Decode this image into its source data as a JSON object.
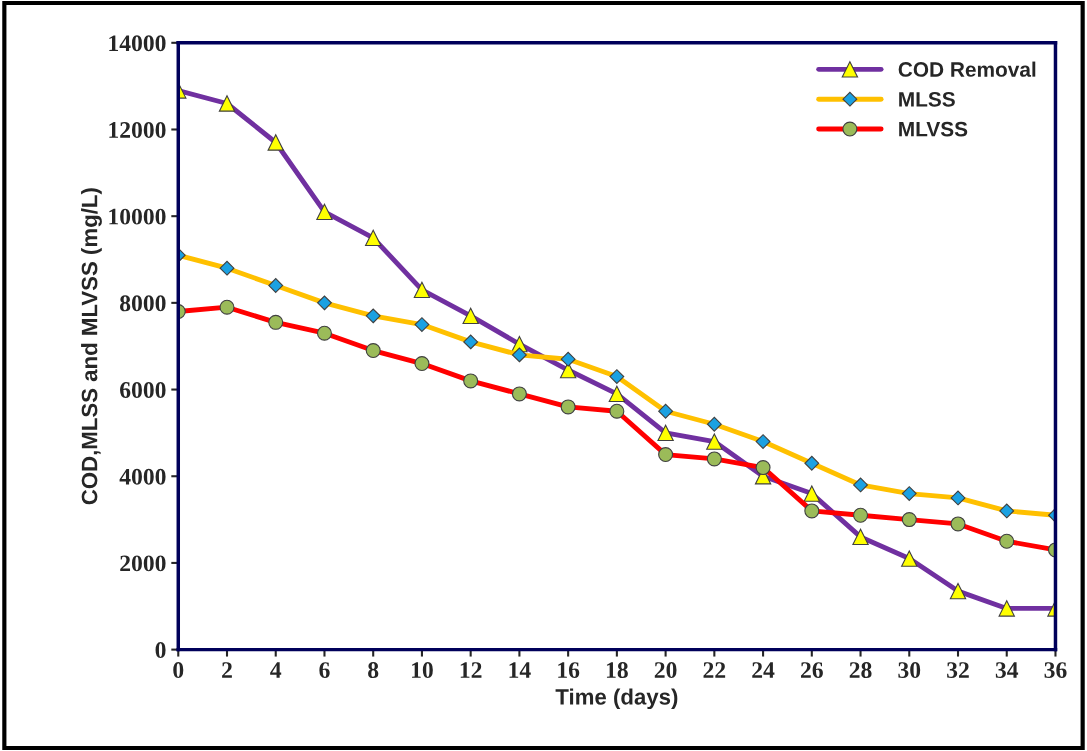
{
  "chart_data": {
    "type": "line",
    "xlabel": "Time (days)",
    "ylabel": "COD,MLSS and MLVSS (mg/L)",
    "x": [
      0,
      2,
      4,
      6,
      8,
      10,
      12,
      14,
      16,
      18,
      20,
      22,
      24,
      26,
      28,
      30,
      32,
      34,
      36
    ],
    "series": [
      {
        "name": "COD Removal",
        "color": "#7030a0",
        "marker": "triangle",
        "values": [
          12900,
          12600,
          11700,
          10100,
          9500,
          8300,
          7700,
          7050,
          6450,
          5900,
          5000,
          4800,
          4000,
          3600,
          2600,
          2100,
          1350,
          950,
          950
        ]
      },
      {
        "name": "MLSS",
        "color": "#ffc000",
        "marker": "diamond",
        "values": [
          9100,
          8800,
          8400,
          8000,
          7700,
          7500,
          7100,
          6800,
          6700,
          6300,
          5500,
          5200,
          4800,
          4300,
          3800,
          3600,
          3500,
          3200,
          3100
        ]
      },
      {
        "name": "MLVSS",
        "color": "#ff0000",
        "marker": "circle",
        "values": [
          7800,
          7900,
          7550,
          7300,
          6900,
          6600,
          6200,
          5900,
          5600,
          5500,
          4500,
          4400,
          4200,
          3200,
          3100,
          3000,
          2900,
          2500,
          2300
        ]
      }
    ],
    "xlim": [
      0,
      36
    ],
    "xticks": [
      0,
      2,
      4,
      6,
      8,
      10,
      12,
      14,
      16,
      18,
      20,
      22,
      24,
      26,
      28,
      30,
      32,
      34,
      36
    ],
    "ylim": [
      0,
      14000
    ],
    "yticks": [
      0,
      2000,
      4000,
      6000,
      8000,
      10000,
      12000,
      14000
    ],
    "grid": false,
    "legend": "top right",
    "line_style": "solid"
  }
}
